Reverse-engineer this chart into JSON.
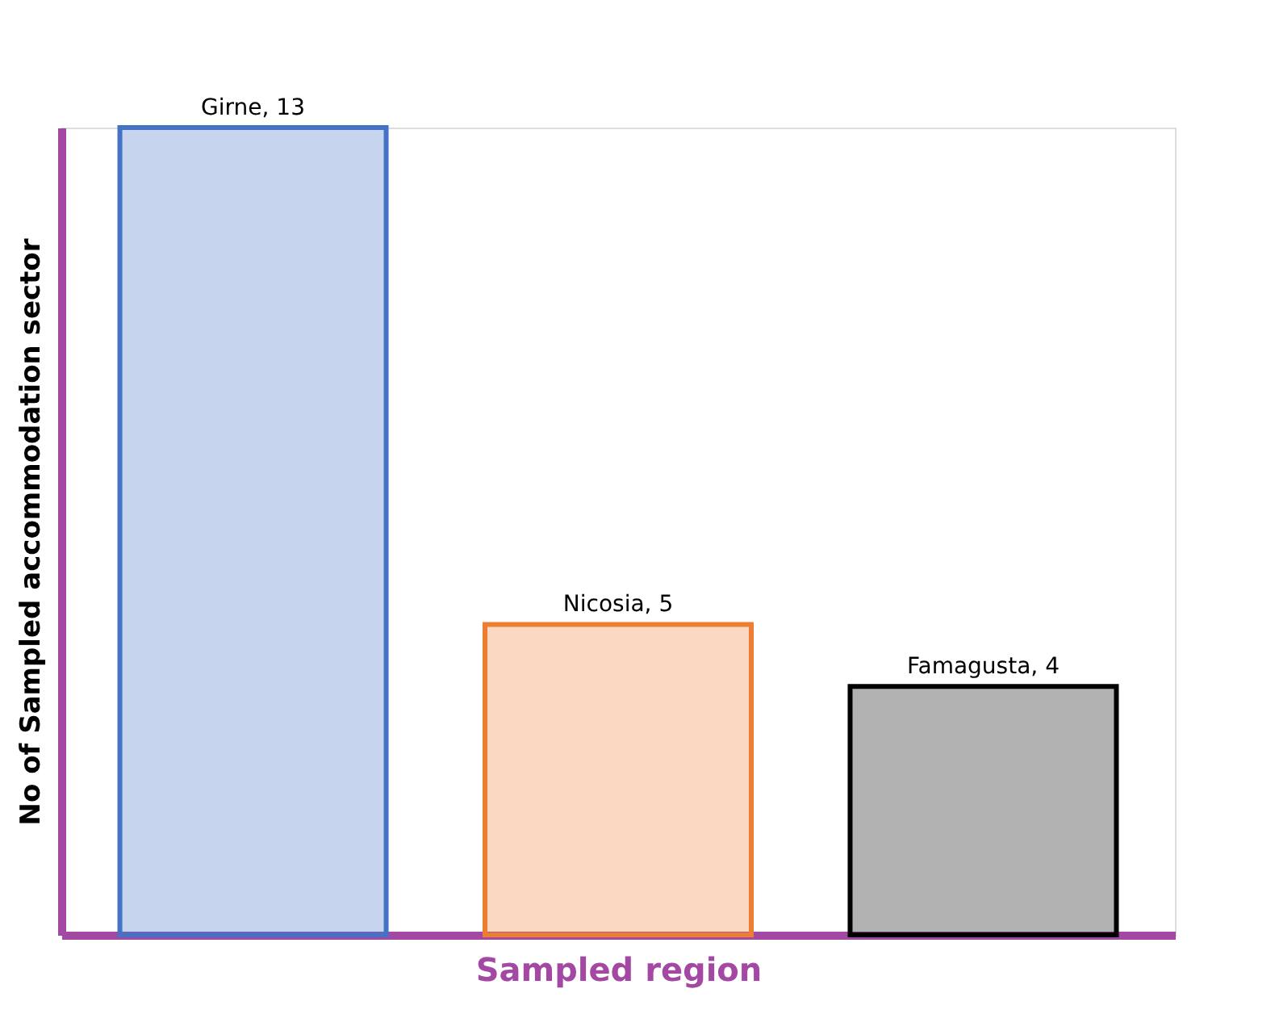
{
  "chart_data": {
    "type": "bar",
    "xlabel": "Sampled region",
    "ylabel": "No of Sampled accommodation sector",
    "categories": [
      null,
      null,
      null
    ],
    "values": [
      13,
      5,
      4
    ],
    "value_labels": [
      "Girne, 13",
      "Nicosia, 5",
      "Famagusta, 4"
    ],
    "colors": [
      "#4472c4",
      "#ed7d31",
      "#000000"
    ],
    "grid": false,
    "tick_labels": false
  }
}
